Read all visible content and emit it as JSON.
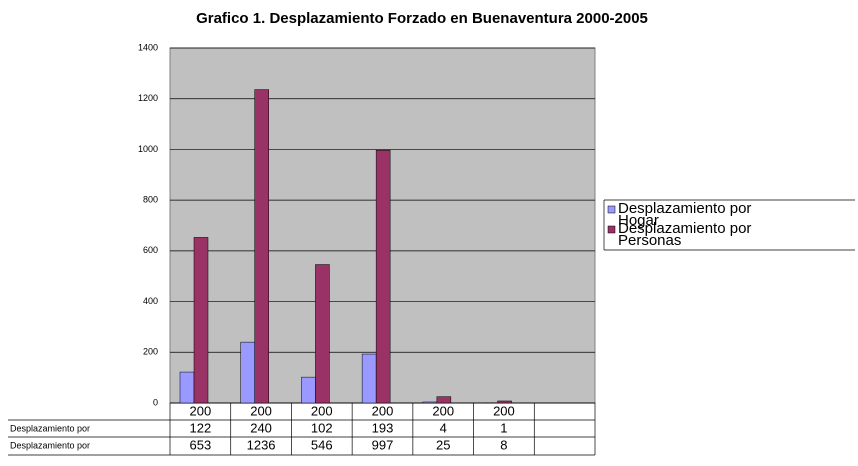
{
  "chart_data": {
    "type": "bar",
    "title": "Grafico 1. Desplazamiento Forzado en Buenaventura 2000-2005",
    "categories": [
      "200",
      "200",
      "200",
      "200",
      "200",
      "200",
      null
    ],
    "series": [
      {
        "name": "Desplazamiento por Hogar",
        "table_label": "Desplazamiento por",
        "color": "#9999ff",
        "values": [
          122,
          240,
          102,
          193,
          4,
          1,
          null
        ]
      },
      {
        "name": "Desplazamiento por Personas",
        "table_label": "Desplazamiento por",
        "color": "#993366",
        "values": [
          653,
          1236,
          546,
          997,
          25,
          8,
          null
        ]
      }
    ],
    "ylim": [
      0,
      1400
    ],
    "yticks": [
      0,
      200,
      400,
      600,
      800,
      1000,
      1200,
      1400
    ],
    "grid": true,
    "plot_background": "#c0c0c0"
  }
}
